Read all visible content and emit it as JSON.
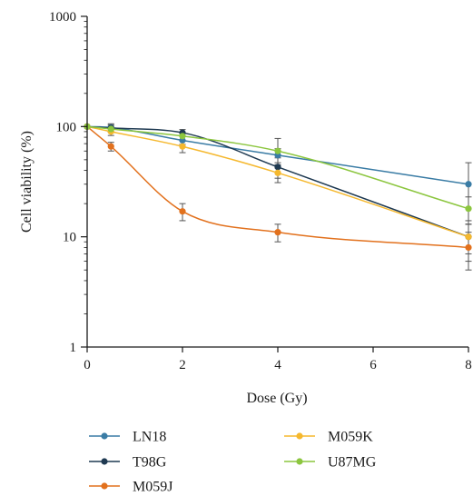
{
  "chart_data": {
    "type": "line",
    "xlabel": "Dose (Gy)",
    "ylabel": "Cell viability (%)",
    "xlim": [
      0,
      8
    ],
    "ylim": [
      1,
      1000
    ],
    "y_scale": "log",
    "grid": false,
    "legend_placement": "bottom",
    "x_ticks": [
      0,
      2,
      4,
      6,
      8
    ],
    "x_tick_labels": [
      "0",
      "2",
      "4",
      "6",
      "8"
    ],
    "y_ticks": [
      1,
      10,
      100,
      1000
    ],
    "y_tick_labels": [
      "1",
      "10",
      "100",
      "1000"
    ],
    "series": [
      {
        "name": "LN18",
        "color": "#3a7ca5",
        "x": [
          0,
          0.5,
          2,
          4,
          8
        ],
        "y": [
          100,
          98,
          75,
          55,
          30
        ],
        "err": [
          0,
          8,
          6,
          8,
          17
        ]
      },
      {
        "name": "T98G",
        "color": "#1f3a52",
        "x": [
          0,
          0.5,
          2,
          4,
          8
        ],
        "y": [
          100,
          97,
          88,
          43,
          10
        ],
        "err": [
          0,
          7,
          6,
          9,
          3
        ]
      },
      {
        "name": "M059J",
        "color": "#e2711d",
        "x": [
          0,
          0.5,
          2,
          4,
          8
        ],
        "y": [
          100,
          66,
          17,
          11,
          8
        ],
        "err": [
          0,
          6,
          3,
          2,
          3
        ]
      },
      {
        "name": "M059K",
        "color": "#f5b82e",
        "x": [
          0,
          0.5,
          2,
          4,
          8
        ],
        "y": [
          100,
          90,
          66,
          38,
          10
        ],
        "err": [
          0,
          7,
          8,
          7,
          4
        ]
      },
      {
        "name": "U87MG",
        "color": "#8cc63f",
        "x": [
          0,
          0.5,
          2,
          4,
          8
        ],
        "y": [
          100,
          95,
          82,
          60,
          18
        ],
        "err": [
          0,
          6,
          7,
          18,
          5
        ]
      }
    ]
  }
}
